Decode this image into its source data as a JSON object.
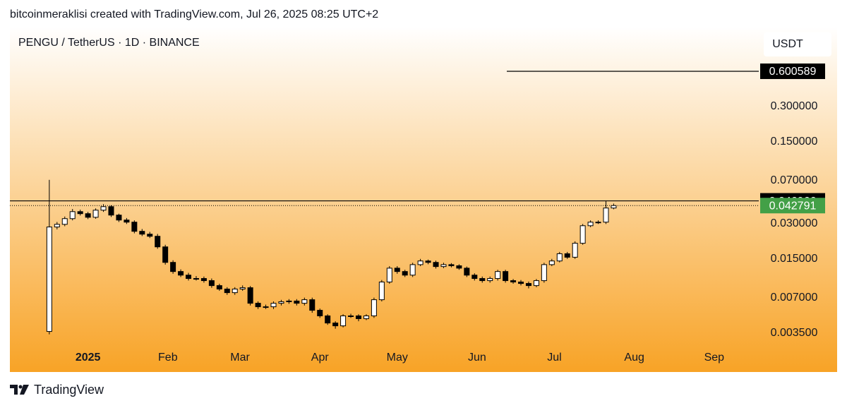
{
  "chart_data": {
    "type": "candlestick",
    "credit": "bitcoinmeraklisi created with TradingView.com, Jul 26, 2025 08:25 UTC+2",
    "title": "PENGU / TetherUS · 1D · BINANCE",
    "currency": "USDT",
    "brand": "TradingView",
    "log_scale": true,
    "up_color": "#ffffff",
    "down_color": "#000000",
    "x": [
      0,
      3,
      6,
      9,
      12,
      15,
      18,
      21,
      24,
      27,
      30,
      33,
      36,
      39,
      42,
      45,
      48,
      51,
      54,
      57,
      60,
      63,
      66,
      69,
      72,
      75,
      78,
      81,
      84,
      87,
      90,
      93,
      96,
      99,
      102,
      105,
      108,
      111,
      114,
      117,
      120,
      123,
      126,
      129,
      132,
      135,
      138,
      141,
      144,
      147,
      150,
      153,
      156,
      159,
      162,
      165,
      168,
      171,
      174,
      177,
      180,
      183,
      186,
      189,
      192,
      195,
      198,
      201,
      204,
      207,
      210,
      213,
      216,
      219
    ],
    "open": [
      0.0036,
      0.0281,
      0.0296,
      0.0331,
      0.038,
      0.0365,
      0.034,
      0.0391,
      0.0419,
      0.0355,
      0.0322,
      0.0309,
      0.0258,
      0.0244,
      0.0234,
      0.019,
      0.014,
      0.0117,
      0.0109,
      0.0102,
      0.0102,
      0.00978,
      0.00887,
      0.00829,
      0.00772,
      0.00829,
      0.00851,
      0.00627,
      0.00585,
      0.00585,
      0.00627,
      0.00646,
      0.00655,
      0.00627,
      0.00672,
      0.00546,
      0.00489,
      0.00425,
      0.00402,
      0.00489,
      0.00489,
      0.00463,
      0.00489,
      0.00672,
      0.00952,
      0.0125,
      0.0117,
      0.0109,
      0.0134,
      0.0144,
      0.014,
      0.0129,
      0.0134,
      0.0131,
      0.0125,
      0.0109,
      0.0102,
      0.00978,
      0.0102,
      0.0117,
      0.00978,
      0.00952,
      0.00925,
      0.00887,
      0.00978,
      0.0134,
      0.0144,
      0.0166,
      0.0155,
      0.0204,
      0.0288,
      0.0309,
      0.0309,
      0.0408
    ],
    "high": [
      0.071,
      0.031,
      0.0345,
      0.04,
      0.0395,
      0.0378,
      0.0405,
      0.044,
      0.043,
      0.0365,
      0.0335,
      0.032,
      0.027,
      0.0255,
      0.0245,
      0.0198,
      0.0146,
      0.0122,
      0.0114,
      0.0107,
      0.0106,
      0.0102,
      0.0092,
      0.0086,
      0.0086,
      0.0089,
      0.0088,
      0.0065,
      0.0061,
      0.0065,
      0.0067,
      0.0068,
      0.0068,
      0.007,
      0.007,
      0.00565,
      0.00505,
      0.0044,
      0.00505,
      0.0051,
      0.00505,
      0.00505,
      0.007,
      0.0099,
      0.013,
      0.013,
      0.0121,
      0.0139,
      0.015,
      0.0148,
      0.0145,
      0.0139,
      0.0138,
      0.0135,
      0.0129,
      0.0113,
      0.0106,
      0.0106,
      0.0121,
      0.0121,
      0.0101,
      0.0099,
      0.0096,
      0.0101,
      0.0139,
      0.015,
      0.0172,
      0.0172,
      0.0212,
      0.0298,
      0.032,
      0.032,
      0.047,
      0.0445
    ],
    "low": [
      0.0034,
      0.0268,
      0.0285,
      0.032,
      0.0352,
      0.0328,
      0.033,
      0.0378,
      0.0342,
      0.031,
      0.0298,
      0.0248,
      0.0235,
      0.0226,
      0.0183,
      0.0134,
      0.0112,
      0.0105,
      0.0098,
      0.0098,
      0.0094,
      0.0085,
      0.008,
      0.0074,
      0.0074,
      0.008,
      0.006,
      0.0056,
      0.0056,
      0.0056,
      0.006,
      0.0062,
      0.006,
      0.006,
      0.0052,
      0.0047,
      0.0041,
      0.0038,
      0.0039,
      0.0047,
      0.0044,
      0.0045,
      0.0047,
      0.0065,
      0.0092,
      0.0112,
      0.0105,
      0.0105,
      0.013,
      0.0135,
      0.0124,
      0.0125,
      0.0127,
      0.0121,
      0.0105,
      0.0098,
      0.0094,
      0.0094,
      0.0098,
      0.0094,
      0.0092,
      0.0089,
      0.0084,
      0.0086,
      0.0094,
      0.013,
      0.014,
      0.015,
      0.015,
      0.0198,
      0.028,
      0.0298,
      0.0298,
      0.0398
    ],
    "close": [
      0.0281,
      0.0296,
      0.0331,
      0.038,
      0.0365,
      0.034,
      0.0391,
      0.0419,
      0.0355,
      0.0322,
      0.0309,
      0.0258,
      0.0244,
      0.0234,
      0.019,
      0.014,
      0.0117,
      0.0109,
      0.0102,
      0.0102,
      0.00978,
      0.00887,
      0.00829,
      0.00772,
      0.00829,
      0.00851,
      0.00627,
      0.00585,
      0.00585,
      0.00627,
      0.00646,
      0.00655,
      0.00627,
      0.00672,
      0.00546,
      0.00489,
      0.00425,
      0.00402,
      0.00489,
      0.00489,
      0.00463,
      0.00489,
      0.00672,
      0.00952,
      0.0125,
      0.0117,
      0.0109,
      0.0134,
      0.0144,
      0.014,
      0.0129,
      0.0134,
      0.0131,
      0.0125,
      0.0109,
      0.0102,
      0.00978,
      0.0102,
      0.0117,
      0.00978,
      0.00952,
      0.00925,
      0.00887,
      0.00978,
      0.0134,
      0.0144,
      0.0166,
      0.0155,
      0.0204,
      0.0288,
      0.0309,
      0.0309,
      0.0408,
      0.0428
    ],
    "xlim": [
      -15.3,
      275.3
    ],
    "xticks": [
      {
        "value": 15,
        "label": "2025"
      },
      {
        "value": 46,
        "label": "Feb"
      },
      {
        "value": 74,
        "label": "Mar"
      },
      {
        "value": 105,
        "label": "Apr"
      },
      {
        "value": 135,
        "label": "May"
      },
      {
        "value": 166,
        "label": "Jun"
      },
      {
        "value": 196,
        "label": "Jul"
      },
      {
        "value": 227,
        "label": "Aug"
      },
      {
        "value": 258,
        "label": "Sep"
      }
    ],
    "ylim": [
      0.0026,
      1.4
    ],
    "yticks": [
      {
        "value": 0.3,
        "label": "0.300000"
      },
      {
        "value": 0.15,
        "label": "0.150000"
      },
      {
        "value": 0.07,
        "label": "0.070000"
      },
      {
        "value": 0.03,
        "label": "0.030000"
      },
      {
        "value": 0.015,
        "label": "0.015000"
      },
      {
        "value": 0.007,
        "label": "0.007000"
      },
      {
        "value": 0.0035,
        "label": "0.003500"
      }
    ],
    "horizontal_lines": [
      0.600589,
      0.046966
    ],
    "last_price": 0.042791,
    "last_price_color": "#43a047"
  }
}
